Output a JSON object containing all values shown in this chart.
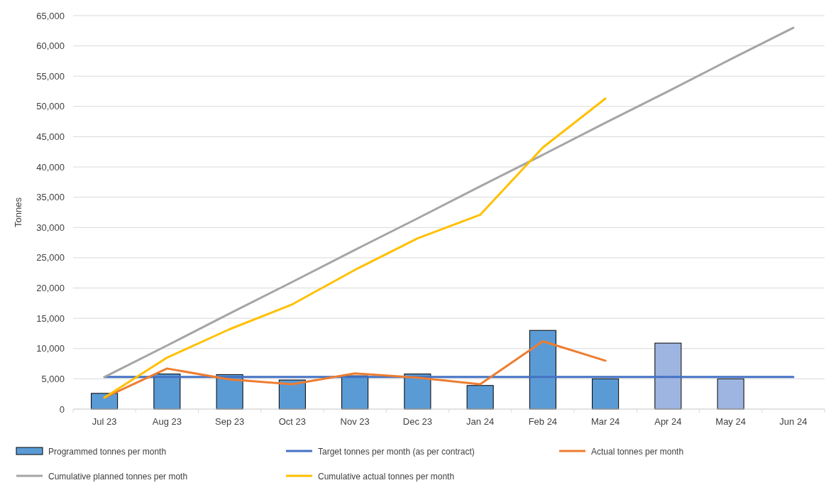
{
  "chart_data": {
    "type": "bar",
    "ylabel": "Tonnes",
    "categories": [
      "Jul 23",
      "Aug 23",
      "Sep 23",
      "Oct 23",
      "Nov 23",
      "Dec 23",
      "Jan 24",
      "Feb 24",
      "Mar 24",
      "Apr 24",
      "May 24",
      "Jun 24"
    ],
    "series": [
      {
        "name": "Programmed tonnes per month",
        "color": "#5b9bd5",
        "colors": [
          "#5b9bd5",
          "#5b9bd5",
          "#5b9bd5",
          "#5b9bd5",
          "#5b9bd5",
          "#5b9bd5",
          "#5b9bd5",
          "#5b9bd5",
          "#5b9bd5",
          "#9db5e0",
          "#9db5e0",
          null
        ],
        "values": [
          2600,
          5800,
          5700,
          4800,
          5500,
          5800,
          3900,
          13000,
          5000,
          10900,
          5000,
          null
        ]
      },
      {
        "name": "Target tonnes per month (as per contract)",
        "type": "line",
        "color": "#4472c4",
        "values": [
          5300,
          5300,
          5300,
          5300,
          5300,
          5300,
          5300,
          5300,
          5300,
          5300,
          5300,
          5300
        ]
      },
      {
        "name": "Actual tonnes per month",
        "type": "line",
        "color": "#ed7d31",
        "values": [
          1900,
          6700,
          4900,
          4100,
          5900,
          5200,
          4100,
          11200,
          8000,
          null,
          null,
          null
        ]
      },
      {
        "name": "Cumulative planned tonnes per moth",
        "type": "line",
        "color": "#a5a5a5",
        "values": [
          5300,
          10500,
          15800,
          21000,
          26300,
          31500,
          36800,
          42000,
          47300,
          52500,
          57800,
          63000
        ]
      },
      {
        "name": "Cumulative actual tonnes per month",
        "type": "line",
        "color": "#ffc000",
        "values": [
          1900,
          8500,
          13200,
          17300,
          23000,
          28200,
          32100,
          43200,
          51300,
          null,
          null,
          null
        ]
      }
    ],
    "ylim": [
      0,
      65000
    ],
    "yticks": [
      {
        "value": 0,
        "label": "0"
      },
      {
        "value": 5000,
        "label": "5,000"
      },
      {
        "value": 10000,
        "label": "10,000"
      },
      {
        "value": 15000,
        "label": "15,000"
      },
      {
        "value": 20000,
        "label": "20,000"
      },
      {
        "value": 25000,
        "label": "25,000"
      },
      {
        "value": 30000,
        "label": "30,000"
      },
      {
        "value": 35000,
        "label": "35,000"
      },
      {
        "value": 40000,
        "label": "40,000"
      },
      {
        "value": 45000,
        "label": "45,000"
      },
      {
        "value": 50000,
        "label": "50,000"
      },
      {
        "value": 55000,
        "label": "55,000"
      },
      {
        "value": 60000,
        "label": "60,000"
      },
      {
        "value": 65000,
        "label": "65,000"
      }
    ],
    "grid": "y",
    "legend": "bottom"
  }
}
